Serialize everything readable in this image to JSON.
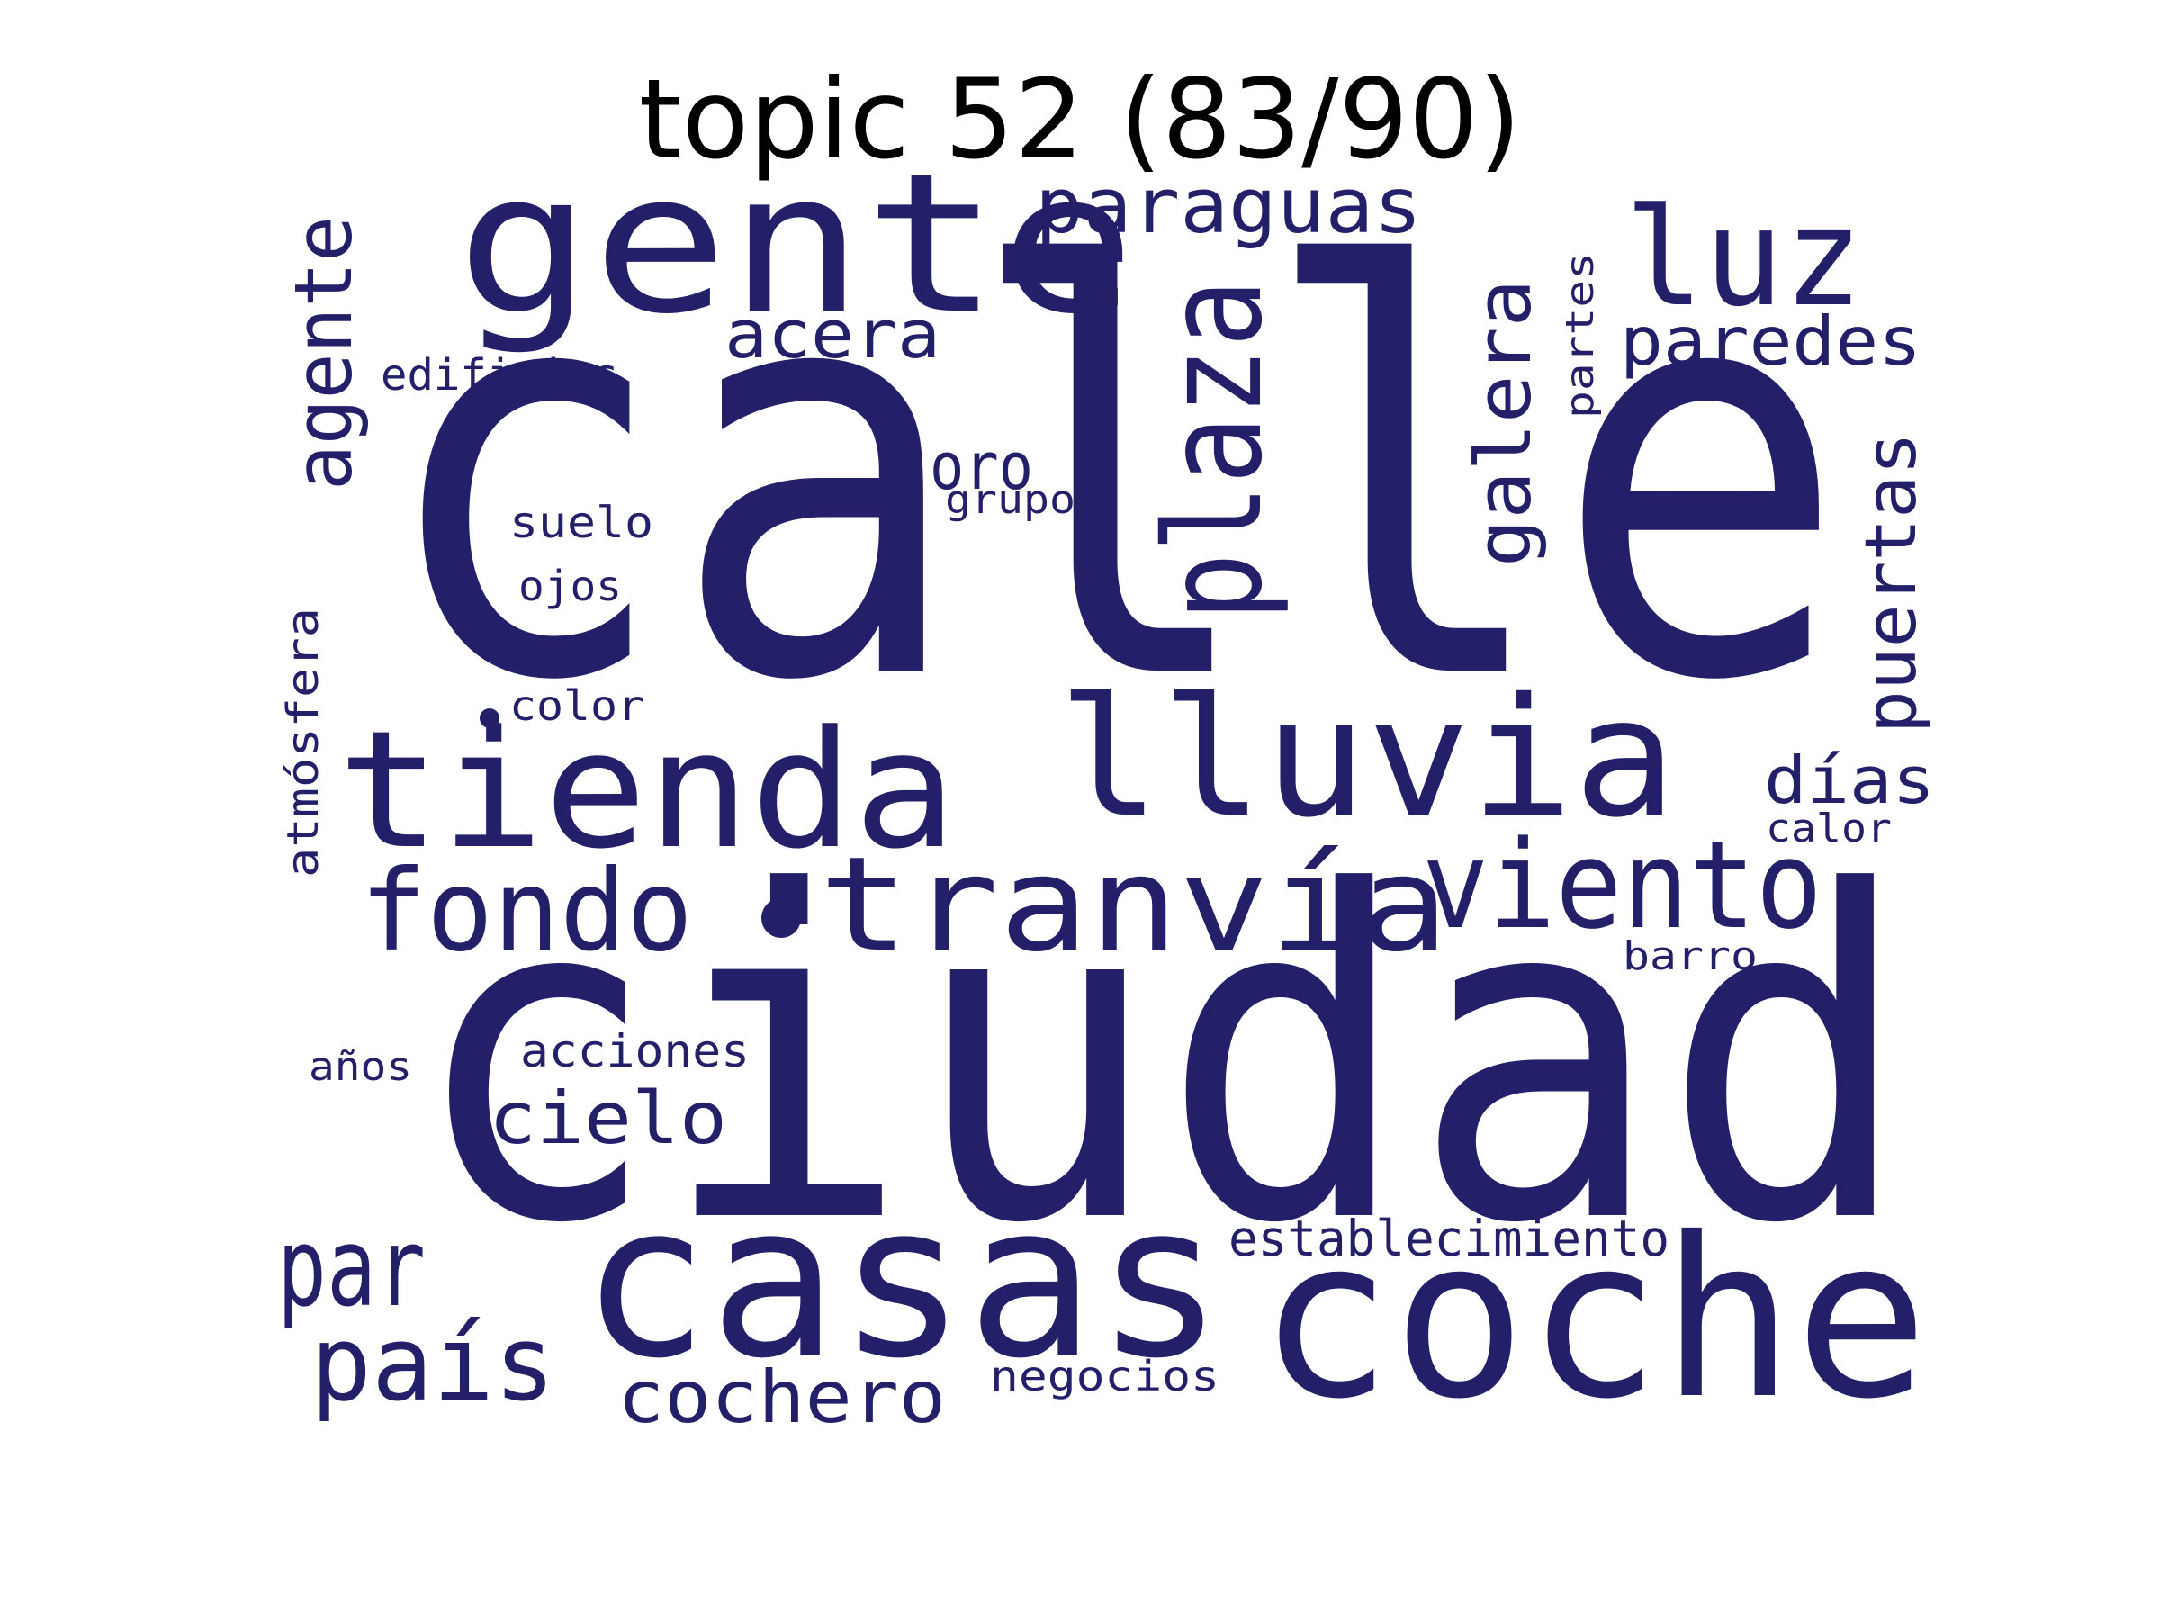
{
  "title": "topic 52 (83/90)",
  "word_color": "#241f69",
  "words": [
    {
      "text": "calle",
      "weight": 1.0,
      "orientation": "horizontal"
    },
    {
      "text": "ciudad",
      "weight": 0.92,
      "orientation": "horizontal"
    },
    {
      "text": "coche",
      "weight": 0.6,
      "orientation": "horizontal"
    },
    {
      "text": "casas",
      "weight": 0.58,
      "orientation": "horizontal"
    },
    {
      "text": "gente",
      "weight": 0.56,
      "orientation": "horizontal"
    },
    {
      "text": "tienda",
      "weight": 0.5,
      "orientation": "horizontal"
    },
    {
      "text": "lluvia",
      "weight": 0.48,
      "orientation": "horizontal"
    },
    {
      "text": "tranvía",
      "weight": 0.4,
      "orientation": "horizontal"
    },
    {
      "text": "plaza",
      "weight": 0.38,
      "orientation": "vertical"
    },
    {
      "text": "luz",
      "weight": 0.36,
      "orientation": "horizontal"
    },
    {
      "text": "viento",
      "weight": 0.33,
      "orientation": "horizontal"
    },
    {
      "text": "fondo",
      "weight": 0.32,
      "orientation": "horizontal"
    },
    {
      "text": "par",
      "weight": 0.31,
      "orientation": "horizontal"
    },
    {
      "text": "país",
      "weight": 0.3,
      "orientation": "horizontal"
    },
    {
      "text": "agente",
      "weight": 0.25,
      "orientation": "vertical"
    },
    {
      "text": "galera",
      "weight": 0.24,
      "orientation": "vertical"
    },
    {
      "text": "puertas",
      "weight": 0.23,
      "orientation": "vertical"
    },
    {
      "text": "paraguas",
      "weight": 0.23,
      "orientation": "horizontal"
    },
    {
      "text": "cochero",
      "weight": 0.22,
      "orientation": "horizontal"
    },
    {
      "text": "cielo",
      "weight": 0.22,
      "orientation": "horizontal"
    },
    {
      "text": "paredes",
      "weight": 0.21,
      "orientation": "horizontal"
    },
    {
      "text": "acera",
      "weight": 0.21,
      "orientation": "horizontal"
    },
    {
      "text": "oro",
      "weight": 0.2,
      "orientation": "horizontal"
    },
    {
      "text": "días",
      "weight": 0.2,
      "orientation": "horizontal"
    },
    {
      "text": "establecimiento",
      "weight": 0.15,
      "orientation": "horizontal"
    },
    {
      "text": "acciones",
      "weight": 0.14,
      "orientation": "horizontal"
    },
    {
      "text": "atmósfera",
      "weight": 0.14,
      "orientation": "vertical"
    },
    {
      "text": "edificios",
      "weight": 0.13,
      "orientation": "horizontal"
    },
    {
      "text": "suelo",
      "weight": 0.13,
      "orientation": "horizontal"
    },
    {
      "text": "negocios",
      "weight": 0.13,
      "orientation": "horizontal"
    },
    {
      "text": "partes",
      "weight": 0.12,
      "orientation": "vertical"
    },
    {
      "text": "ojos",
      "weight": 0.12,
      "orientation": "horizontal"
    },
    {
      "text": "color",
      "weight": 0.12,
      "orientation": "horizontal"
    },
    {
      "text": "grupo",
      "weight": 0.12,
      "orientation": "horizontal"
    },
    {
      "text": "calor",
      "weight": 0.12,
      "orientation": "horizontal"
    },
    {
      "text": "barro",
      "weight": 0.12,
      "orientation": "horizontal"
    },
    {
      "text": "años",
      "weight": 0.12,
      "orientation": "horizontal"
    }
  ],
  "dot_marks": 2
}
